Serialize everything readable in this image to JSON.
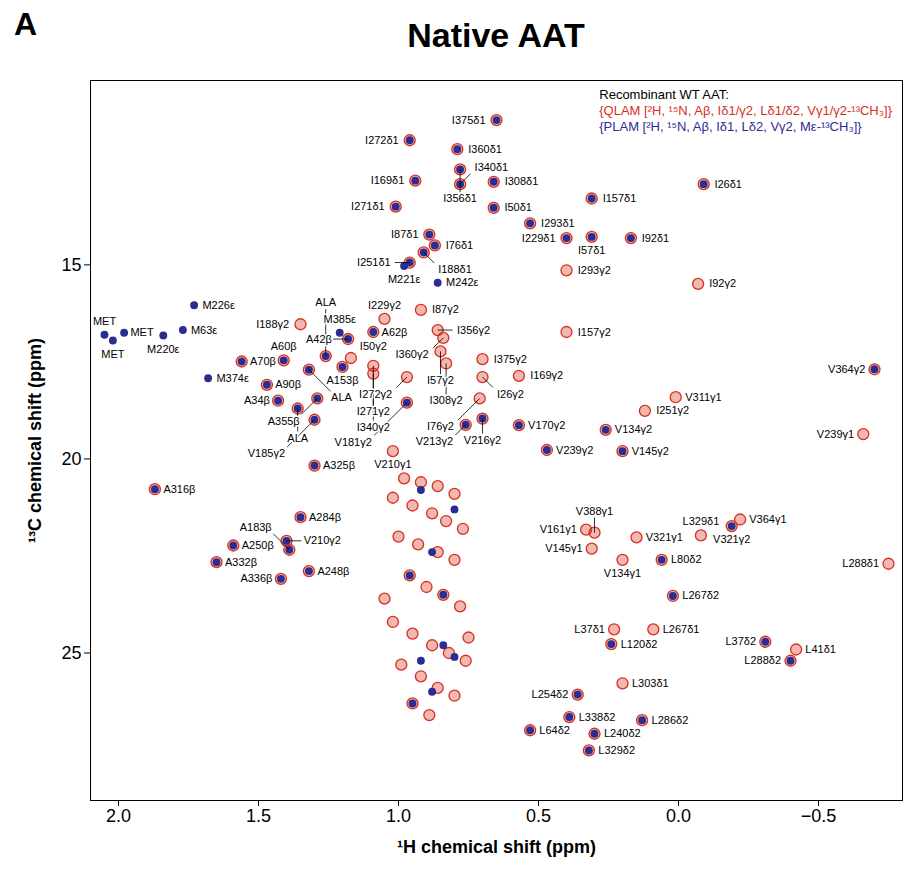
{
  "chart_data": {
    "type": "scatter",
    "title": "Native AAT",
    "panel_label": "A",
    "legend_title": "Recombinant WT AAT:",
    "x_label": "¹H chemical shift (ppm)",
    "y_label": "¹³C chemical shift (ppm)",
    "xlim": [
      2.1,
      -0.8
    ],
    "xticks": [
      {
        "value": 2,
        "label": "2.0"
      },
      1.5,
      {
        "value": 1,
        "label": "1.0"
      },
      0.5,
      {
        "value": 0,
        "label": "0.0"
      },
      {
        "value": -0.5,
        "label": "−0.5"
      }
    ],
    "ylim": [
      28.8,
      10.25
    ],
    "yticks": [
      15,
      20,
      25
    ],
    "grid": false,
    "legend": "top-right",
    "series": [
      {
        "name": "{QLAM [²H, ¹⁵N, Aβ, Iδ1/γ2, Lδ1/δ2, Vγ1/γ2-¹³CH₃]}",
        "color": "#d7301f",
        "x": [
          0.65,
          0.79,
          0.78,
          0.78,
          0.66,
          0.94,
          0.96,
          1.01,
          0.66,
          -0.09,
          0.31,
          0.53,
          0.4,
          0.89,
          0.91,
          0.87,
          0.96,
          0.31,
          0.17,
          1.56,
          1.41,
          1.18,
          1.09,
          1.35,
          1.05,
          0.92,
          0.4,
          -0.07,
          0.86,
          0.84,
          0.4,
          -0.7,
          0.7,
          0.85,
          0.83,
          0.57,
          0.7,
          0.97,
          1.09,
          1.17,
          1.09,
          1.2,
          1.47,
          1.43,
          1.29,
          1.26,
          1.32,
          1.36,
          0.71,
          0.7,
          0.76,
          0.57,
          0.12,
          0.01,
          -0.66,
          0.26,
          0.2,
          0.47,
          0.97,
          1.3,
          1.02,
          1.3,
          1.87,
          1.35,
          1.4,
          1.59,
          1.39,
          1.65,
          1.42,
          1.32,
          -0.22,
          0.33,
          0.3,
          0.31,
          0.15,
          -0.19,
          0.2,
          -0.08,
          0.06,
          -0.75,
          0.02,
          0.09,
          0.23,
          0.24,
          -0.31,
          -0.42,
          -0.4,
          0.2,
          0.36,
          0.39,
          0.13,
          0.53,
          0.3,
          0.32,
          0.98,
          0.92,
          0.86,
          0.8,
          1.02,
          0.95,
          0.88,
          0.83,
          0.77,
          1.0,
          0.93,
          0.86,
          0.8,
          0.96,
          0.9,
          0.84,
          0.78,
          1.02,
          0.95,
          0.88,
          0.82,
          0.76,
          0.99,
          0.92,
          0.86,
          0.8,
          0.95,
          0.89,
          1.05,
          0.75
        ],
        "y": [
          11.27,
          12.02,
          12.54,
          12.92,
          12.86,
          12.83,
          11.79,
          13.5,
          13.53,
          12.92,
          13.29,
          13.93,
          14.31,
          14.22,
          14.68,
          14.5,
          14.94,
          14.28,
          14.31,
          17.49,
          17.46,
          16.91,
          16.73,
          16.53,
          16.39,
          16.16,
          15.14,
          15.49,
          16.68,
          16.88,
          16.73,
          17.69,
          17.43,
          17.23,
          17.54,
          17.86,
          17.89,
          17.89,
          17.6,
          17.4,
          17.8,
          17.63,
          18.09,
          18.5,
          18.44,
          17.35,
          17.7,
          18.7,
          18.44,
          18.96,
          19.12,
          19.13,
          18.76,
          18.41,
          19.36,
          19.25,
          19.8,
          19.77,
          18.55,
          18.99,
          19.8,
          20.17,
          20.78,
          21.5,
          22.11,
          22.23,
          22.34,
          22.66,
          23.09,
          22.89,
          21.56,
          21.82,
          21.9,
          22.31,
          22.02,
          21.73,
          22.6,
          21.97,
          22.6,
          22.7,
          23.53,
          24.39,
          24.39,
          24.77,
          24.71,
          24.91,
          25.2,
          25.78,
          26.07,
          26.65,
          26.73,
          26.99,
          27.08,
          27.51,
          20.5,
          20.6,
          20.7,
          20.9,
          21.0,
          21.2,
          21.4,
          21.6,
          21.8,
          22.0,
          22.2,
          22.4,
          22.6,
          23.0,
          23.3,
          23.5,
          23.8,
          24.2,
          24.5,
          24.8,
          25.0,
          25.2,
          25.3,
          25.6,
          25.9,
          26.1,
          26.3,
          26.6,
          23.6,
          24.6
        ]
      },
      {
        "name": "{PLAM [²H, ¹⁵N, Aβ, Iδ1, Lδ2, Vγ2, Mε-¹³CH₃]}",
        "color": "#2b2d93",
        "x": [
          0.65,
          0.79,
          0.78,
          0.78,
          0.66,
          0.94,
          0.96,
          1.01,
          0.66,
          -0.09,
          0.31,
          0.53,
          0.4,
          0.89,
          0.91,
          0.87,
          0.96,
          0.31,
          0.17,
          0.98,
          0.86,
          1.73,
          2.05,
          2.02,
          1.98,
          1.84,
          1.77,
          1.68,
          1.21,
          1.56,
          1.41,
          1.18,
          1.09,
          -0.7,
          1.2,
          1.47,
          1.43,
          1.29,
          1.26,
          1.32,
          1.36,
          0.7,
          0.76,
          0.57,
          0.26,
          0.2,
          0.47,
          0.97,
          1.3,
          1.3,
          1.87,
          1.35,
          1.4,
          1.59,
          1.39,
          1.65,
          1.42,
          1.32,
          -0.19,
          0.06,
          0.02,
          0.24,
          -0.31,
          -0.4,
          0.36,
          0.39,
          0.13,
          0.53,
          0.3,
          0.32,
          0.92,
          0.8,
          0.88,
          0.96,
          0.84,
          0.92,
          0.8,
          0.88,
          0.95,
          0.84
        ],
        "y": [
          11.27,
          12.02,
          12.54,
          12.92,
          12.86,
          12.83,
          11.79,
          13.5,
          13.53,
          12.92,
          13.29,
          13.93,
          14.31,
          14.22,
          14.68,
          14.5,
          14.94,
          14.28,
          14.31,
          15.03,
          15.46,
          16.04,
          16.8,
          16.95,
          16.75,
          16.82,
          16.68,
          17.92,
          16.75,
          17.49,
          17.46,
          16.91,
          16.73,
          17.69,
          17.63,
          18.09,
          18.5,
          18.44,
          17.35,
          17.7,
          18.7,
          18.96,
          19.12,
          19.13,
          19.25,
          19.8,
          19.77,
          18.55,
          18.99,
          20.17,
          20.78,
          21.5,
          22.11,
          22.23,
          22.34,
          22.66,
          23.09,
          22.89,
          21.73,
          22.6,
          23.53,
          24.77,
          24.71,
          25.2,
          26.07,
          26.65,
          26.73,
          26.99,
          27.08,
          27.51,
          20.8,
          21.3,
          22.4,
          23.0,
          24.8,
          25.2,
          25.1,
          26.0,
          26.3,
          23.5
        ]
      }
    ],
    "annotations": [
      {
        "text": "I375δ1",
        "x": 0.65,
        "y": 11.27
      },
      {
        "text": "I360δ1",
        "x": 0.79,
        "y": 12.02
      },
      {
        "text": "I356δ1",
        "x": 0.78,
        "y": 12.54
      },
      {
        "text": "I340δ1",
        "x": 0.78,
        "y": 12.92
      },
      {
        "text": "I308δ1",
        "x": 0.66,
        "y": 12.86
      },
      {
        "text": "I169δ1",
        "x": 0.94,
        "y": 12.83
      },
      {
        "text": "I272δ1",
        "x": 0.96,
        "y": 11.79
      },
      {
        "text": "I271δ1",
        "x": 1.01,
        "y": 13.5
      },
      {
        "text": "I50δ1",
        "x": 0.66,
        "y": 13.53
      },
      {
        "text": "I26δ1",
        "x": -0.09,
        "y": 12.92
      },
      {
        "text": "I157δ1",
        "x": 0.31,
        "y": 13.29
      },
      {
        "text": "I293δ1",
        "x": 0.53,
        "y": 13.93
      },
      {
        "text": "I229δ1",
        "x": 0.4,
        "y": 14.31
      },
      {
        "text": "I87δ1",
        "x": 0.89,
        "y": 14.22
      },
      {
        "text": "I188δ1",
        "x": 0.91,
        "y": 14.68
      },
      {
        "text": "I76δ1",
        "x": 0.87,
        "y": 14.5
      },
      {
        "text": "I251δ1",
        "x": 0.96,
        "y": 14.94
      },
      {
        "text": "I57δ1",
        "x": 0.31,
        "y": 14.28
      },
      {
        "text": "I92δ1",
        "x": 0.17,
        "y": 14.31
      },
      {
        "text": "M221ε",
        "x": 0.98,
        "y": 15.03
      },
      {
        "text": "M242ε",
        "x": 0.86,
        "y": 15.46
      },
      {
        "text": "M226ε",
        "x": 1.73,
        "y": 16.04
      },
      {
        "text": "MET",
        "x": 2.05,
        "y": 16.8
      },
      {
        "text": "MET",
        "x": 2.02,
        "y": 16.95
      },
      {
        "text": "MET",
        "x": 1.98,
        "y": 16.75
      },
      {
        "text": "M220ε",
        "x": 1.84,
        "y": 16.82
      },
      {
        "text": "M63ε",
        "x": 1.77,
        "y": 16.68
      },
      {
        "text": "M374ε",
        "x": 1.68,
        "y": 17.92
      },
      {
        "text": "M385ε",
        "x": 1.21,
        "y": 16.75
      },
      {
        "text": "A70β",
        "x": 1.56,
        "y": 17.49
      },
      {
        "text": "A60β",
        "x": 1.41,
        "y": 17.46
      },
      {
        "text": "A42β",
        "x": 1.18,
        "y": 16.91
      },
      {
        "text": "A62β",
        "x": 1.09,
        "y": 16.73
      },
      {
        "text": "I188γ2",
        "x": 1.35,
        "y": 16.53
      },
      {
        "text": "I229γ2",
        "x": 1.05,
        "y": 16.39
      },
      {
        "text": "I87γ2",
        "x": 0.92,
        "y": 16.16
      },
      {
        "text": "I293γ2",
        "x": 0.4,
        "y": 15.14
      },
      {
        "text": "I92γ2",
        "x": -0.07,
        "y": 15.49
      },
      {
        "text": "I356γ2",
        "x": 0.86,
        "y": 16.68
      },
      {
        "text": "I360γ2",
        "x": 0.84,
        "y": 16.88
      },
      {
        "text": "I157γ2",
        "x": 0.4,
        "y": 16.73
      },
      {
        "text": "V364γ2",
        "x": -0.7,
        "y": 17.69
      },
      {
        "text": "I375γ2",
        "x": 0.7,
        "y": 17.43
      },
      {
        "text": "I57γ2",
        "x": 0.85,
        "y": 17.23
      },
      {
        "text": "I308γ2",
        "x": 0.83,
        "y": 17.54
      },
      {
        "text": "I169γ2",
        "x": 0.57,
        "y": 17.86
      },
      {
        "text": "I26γ2",
        "x": 0.7,
        "y": 17.89
      },
      {
        "text": "I272γ2",
        "x": 0.97,
        "y": 17.89
      },
      {
        "text": "I271γ2",
        "x": 1.09,
        "y": 17.6
      },
      {
        "text": "I50γ2",
        "x": 1.17,
        "y": 17.4
      },
      {
        "text": "I340γ2",
        "x": 1.09,
        "y": 17.8
      },
      {
        "text": "A153β",
        "x": 1.2,
        "y": 17.63
      },
      {
        "text": "A90β",
        "x": 1.47,
        "y": 18.09
      },
      {
        "text": "A34β",
        "x": 1.43,
        "y": 18.5
      },
      {
        "text": "A355β",
        "x": 1.29,
        "y": 18.44
      },
      {
        "text": "ALA",
        "x": 1.26,
        "y": 17.35
      },
      {
        "text": "ALA",
        "x": 1.32,
        "y": 17.7
      },
      {
        "text": "ALA",
        "x": 1.36,
        "y": 18.7
      },
      {
        "text": "I76γ2",
        "x": 0.71,
        "y": 18.44
      },
      {
        "text": "V216γ2",
        "x": 0.7,
        "y": 18.96
      },
      {
        "text": "V213γ2",
        "x": 0.76,
        "y": 19.12
      },
      {
        "text": "V170γ2",
        "x": 0.57,
        "y": 19.13
      },
      {
        "text": "I251γ2",
        "x": 0.12,
        "y": 18.76
      },
      {
        "text": "V311γ1",
        "x": 0.01,
        "y": 18.41
      },
      {
        "text": "V239γ1",
        "x": -0.66,
        "y": 19.36
      },
      {
        "text": "V134γ2",
        "x": 0.26,
        "y": 19.25
      },
      {
        "text": "V145γ2",
        "x": 0.2,
        "y": 19.8
      },
      {
        "text": "V239γ2",
        "x": 0.47,
        "y": 19.77
      },
      {
        "text": "V181γ2",
        "x": 0.97,
        "y": 18.55
      },
      {
        "text": "V185γ2",
        "x": 1.3,
        "y": 18.99
      },
      {
        "text": "V210γ1",
        "x": 1.02,
        "y": 19.8
      },
      {
        "text": "A325β",
        "x": 1.3,
        "y": 20.17
      },
      {
        "text": "A316β",
        "x": 1.87,
        "y": 20.78
      },
      {
        "text": "A284β",
        "x": 1.35,
        "y": 21.5
      },
      {
        "text": "V210γ2",
        "x": 1.4,
        "y": 22.11
      },
      {
        "text": "A250β",
        "x": 1.59,
        "y": 22.23
      },
      {
        "text": "A183β",
        "x": 1.39,
        "y": 22.34
      },
      {
        "text": "A332β",
        "x": 1.65,
        "y": 22.66
      },
      {
        "text": "A336β",
        "x": 1.42,
        "y": 23.09
      },
      {
        "text": "A248β",
        "x": 1.32,
        "y": 22.89
      },
      {
        "text": "V364γ1",
        "x": -0.22,
        "y": 21.56
      },
      {
        "text": "V161γ1",
        "x": 0.33,
        "y": 21.82
      },
      {
        "text": "V388γ1",
        "x": 0.3,
        "y": 21.9
      },
      {
        "text": "V145γ1",
        "x": 0.31,
        "y": 22.31
      },
      {
        "text": "V321γ1",
        "x": 0.15,
        "y": 22.02
      },
      {
        "text": "V321γ2",
        "x": -0.19,
        "y": 21.73
      },
      {
        "text": "V134γ1",
        "x": 0.2,
        "y": 22.6
      },
      {
        "text": "L329δ1",
        "x": -0.08,
        "y": 21.97
      },
      {
        "text": "L80δ2",
        "x": 0.06,
        "y": 22.6
      },
      {
        "text": "L288δ1",
        "x": -0.75,
        "y": 22.7
      },
      {
        "text": "L267δ2",
        "x": 0.02,
        "y": 23.53
      },
      {
        "text": "L267δ1",
        "x": 0.09,
        "y": 24.39
      },
      {
        "text": "L37δ1",
        "x": 0.23,
        "y": 24.39
      },
      {
        "text": "L120δ2",
        "x": 0.24,
        "y": 24.77
      },
      {
        "text": "L37δ2",
        "x": -0.31,
        "y": 24.71
      },
      {
        "text": "L41δ1",
        "x": -0.42,
        "y": 24.91
      },
      {
        "text": "L288δ2",
        "x": -0.4,
        "y": 25.2
      },
      {
        "text": "L303δ1",
        "x": 0.2,
        "y": 25.78
      },
      {
        "text": "L254δ2",
        "x": 0.36,
        "y": 26.07
      },
      {
        "text": "L338δ2",
        "x": 0.39,
        "y": 26.65
      },
      {
        "text": "L286δ2",
        "x": 0.13,
        "y": 26.73
      },
      {
        "text": "L64δ2",
        "x": 0.53,
        "y": 26.99
      },
      {
        "text": "L240δ2",
        "x": 0.3,
        "y": 27.08
      },
      {
        "text": "L329δ2",
        "x": 0.32,
        "y": 27.51
      }
    ]
  }
}
